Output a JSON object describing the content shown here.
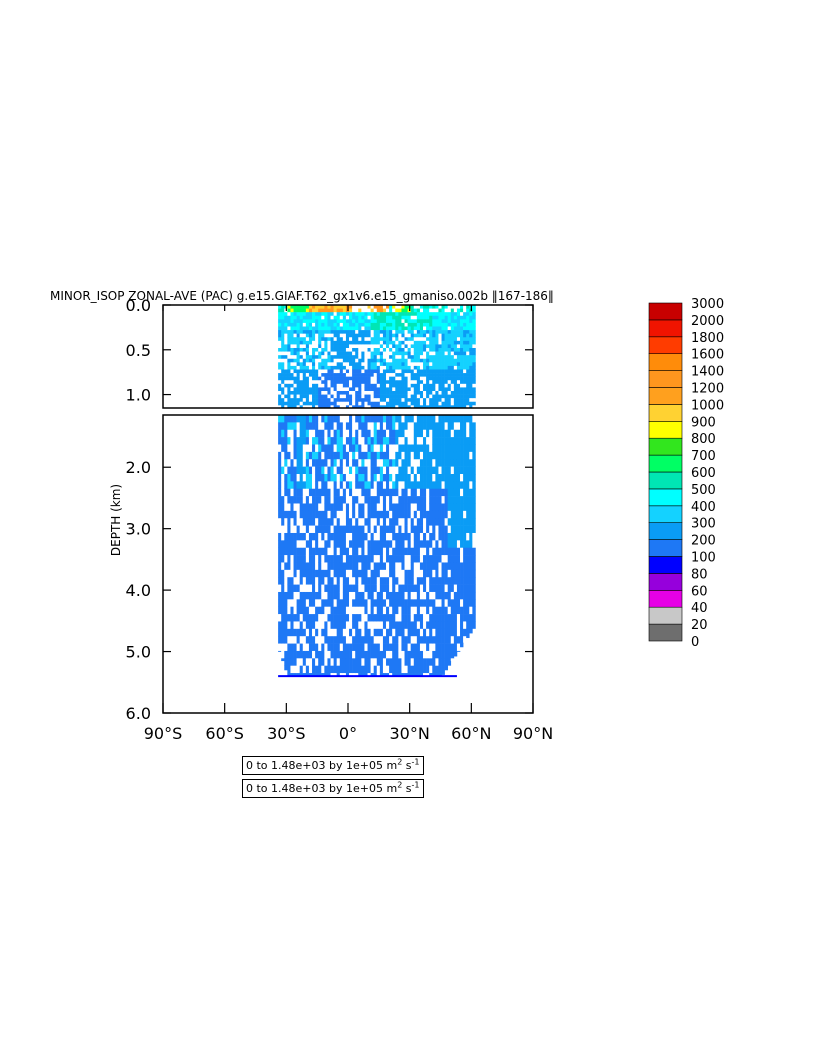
{
  "chart_data": {
    "type": "heatmap",
    "title": "MINOR_ISOP ZONAL-AVE (PAC) g.e15.GIAF.T62_gx1v6.e15_gmaniso.002b ‖167-186‖",
    "ylabel": "DEPTH (km)",
    "xlabel": "",
    "x_ticks": [
      "90°S",
      "60°S",
      "30°S",
      "0°",
      "30°N",
      "60°N",
      "90°N"
    ],
    "x_tick_values": [
      -90,
      -60,
      -30,
      0,
      30,
      60,
      90
    ],
    "xlim": [
      -90,
      90
    ],
    "upper_panel": {
      "ylim": [
        0.0,
        1.15
      ],
      "y_ticks": [
        "0.0",
        "0.5",
        "1.0"
      ],
      "y_tick_values": [
        0.0,
        0.5,
        1.0
      ]
    },
    "lower_panel": {
      "ylim": [
        1.15,
        6.0
      ],
      "y_ticks": [
        "2.0",
        "3.0",
        "4.0",
        "5.0",
        "6.0"
      ],
      "y_tick_values": [
        2.0,
        3.0,
        4.0,
        5.0,
        6.0
      ]
    },
    "data_extent": {
      "lat_min": -34,
      "lat_max": 61,
      "max_depth_km": 5.4
    },
    "colorbar": {
      "levels": [
        "0",
        "20",
        "40",
        "60",
        "80",
        "100",
        "200",
        "300",
        "400",
        "500",
        "600",
        "700",
        "800",
        "900",
        "1000",
        "1200",
        "1400",
        "1600",
        "1800",
        "2000",
        "3000"
      ],
      "colors": [
        "#6e6e6e",
        "#c8c8c8",
        "#e600e6",
        "#9600dc",
        "#0000ff",
        "#1e78f5",
        "#0a9cf5",
        "#14d2ff",
        "#00ffff",
        "#00e6b4",
        "#00ff64",
        "#32e61e",
        "#ffff00",
        "#ffd232",
        "#ffa01e",
        "#ff961e",
        "#ff8c0a",
        "#ff3c00",
        "#f01400",
        "#c80000"
      ]
    },
    "contour_info": [
      "0 to 1.48e+03 by 1e+05 m² s⁻¹",
      "0 to 1.48e+03 by 1e+05 m² s⁻¹"
    ],
    "info_parts": {
      "text": "0 to 1.48e+03 by 1e+05 m",
      "sup1": "2",
      "mid": " s",
      "sup2": "-1"
    }
  }
}
